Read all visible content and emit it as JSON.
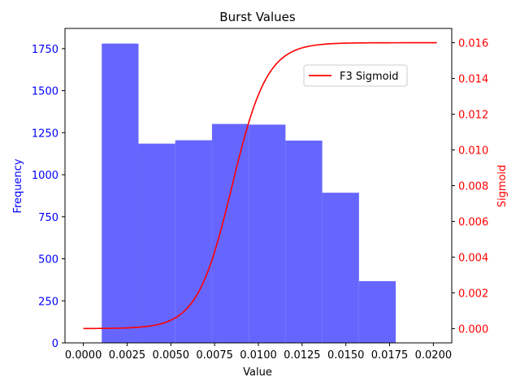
{
  "chart_data": {
    "type": "bar",
    "title": "Burst Values",
    "xlabel": "Value",
    "ylabel_left": "Frequency",
    "ylabel_right": "Sigmoid",
    "xlim": [
      -0.00105,
      0.02105
    ],
    "ylim_left": [
      0,
      1870
    ],
    "ylim_right": [
      -0.0008,
      0.0168
    ],
    "x_ticks": [
      0.0,
      0.0025,
      0.005,
      0.0075,
      0.01,
      0.0125,
      0.015,
      0.0175,
      0.02
    ],
    "x_tick_labels": [
      "0.0000",
      "0.0025",
      "0.0050",
      "0.0075",
      "0.0100",
      "0.0125",
      "0.0150",
      "0.0175",
      "0.0200"
    ],
    "y_left_ticks": [
      0,
      250,
      500,
      750,
      1000,
      1250,
      1500,
      1750
    ],
    "y_left_tick_labels": [
      "0",
      "250",
      "500",
      "750",
      "1000",
      "1250",
      "1500",
      "1750"
    ],
    "y_right_ticks": [
      0.0,
      0.002,
      0.004,
      0.006,
      0.008,
      0.01,
      0.012,
      0.014,
      0.016
    ],
    "y_right_tick_labels": [
      "0.000",
      "0.002",
      "0.004",
      "0.006",
      "0.008",
      "0.010",
      "0.012",
      "0.014",
      "0.016"
    ],
    "histogram": {
      "bin_edges": [
        0.00105,
        0.00315,
        0.00525,
        0.00735,
        0.00945,
        0.01155,
        0.01365,
        0.01575,
        0.01785
      ],
      "counts": [
        1780,
        1185,
        1205,
        1302,
        1298,
        1203,
        893,
        367
      ]
    },
    "series": [
      {
        "name": "F3 Sigmoid",
        "type": "line",
        "function": {
          "kind": "sigmoid",
          "L": 0.016,
          "x0": 0.0085,
          "k": 1000,
          "x_start": 0.0,
          "x_end": 0.0202
        }
      }
    ],
    "legend": {
      "position": "top-right",
      "entries": [
        "F3 Sigmoid"
      ]
    },
    "grid": false,
    "colors": {
      "bars": "#6666ff",
      "line": "#ff0000",
      "left_axis": "#0000ff",
      "right_axis": "#ff0000",
      "axes": "#000000"
    }
  }
}
